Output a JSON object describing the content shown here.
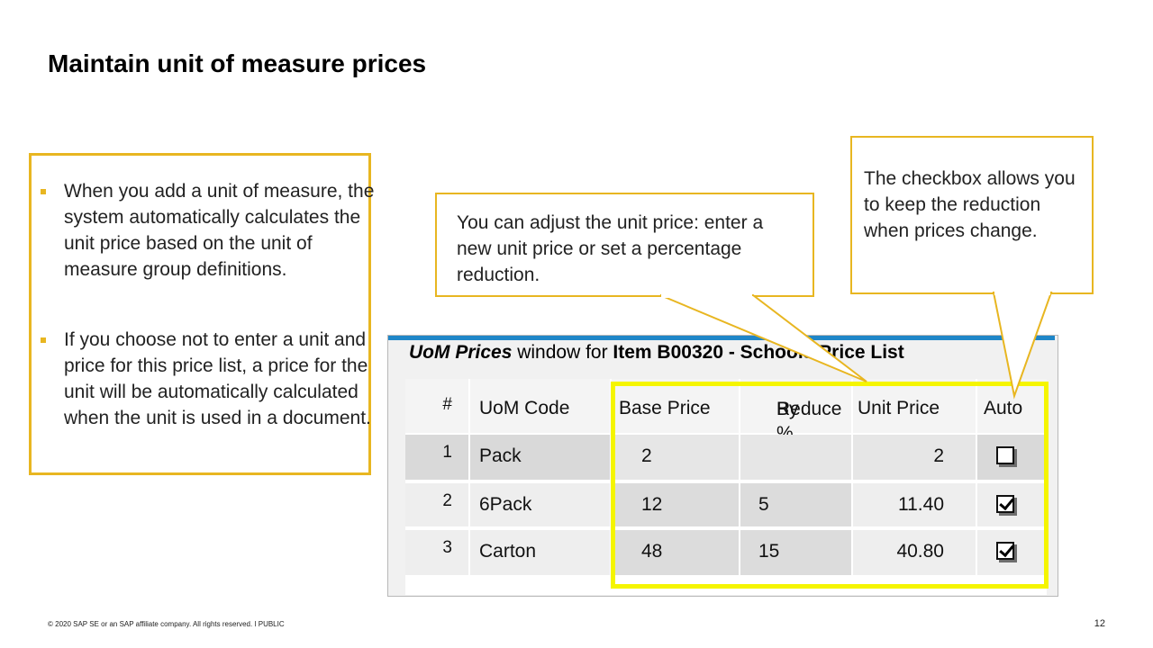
{
  "slide": {
    "title": "Maintain unit of measure prices",
    "footer": "© 2020 SAP SE or an SAP affiliate company. All rights reserved.  ǀ  PUBLIC",
    "page_number": "12"
  },
  "bullets": [
    "When you add a unit of measure, the system automatically calculates the unit price based on the unit of measure group definitions.",
    "If you choose not to enter a unit and price for this price list, a price for the unit will be automatically calculated when the unit is used in a document."
  ],
  "callouts": {
    "adjust": "You can adjust the unit price: enter a new unit price or set a percentage reduction.",
    "checkbox": "The checkbox allows you to keep the reduction when prices change."
  },
  "window": {
    "title_italic": "UoM Prices",
    "title_mid": " window for ",
    "title_bold": "Item B00320 - Schools Price List",
    "columns": {
      "num": "#",
      "code": "UoM Code",
      "base": "Base Price",
      "reduce_line1": "Reduce",
      "reduce_line2": "By %",
      "unit": "Unit Price",
      "auto": "Auto"
    },
    "rows": [
      {
        "num": "1",
        "code": "Pack",
        "base": "2",
        "reduce": "",
        "unit": "2",
        "auto": false
      },
      {
        "num": "2",
        "code": "6Pack",
        "base": "12",
        "reduce": "5",
        "unit": "11.40",
        "auto": true
      },
      {
        "num": "3",
        "code": "Carton",
        "base": "48",
        "reduce": "15",
        "unit": "40.80",
        "auto": true
      }
    ]
  },
  "colors": {
    "accent": "#e8b621",
    "highlight": "#f5f500",
    "window_bar": "#1f86c8"
  }
}
